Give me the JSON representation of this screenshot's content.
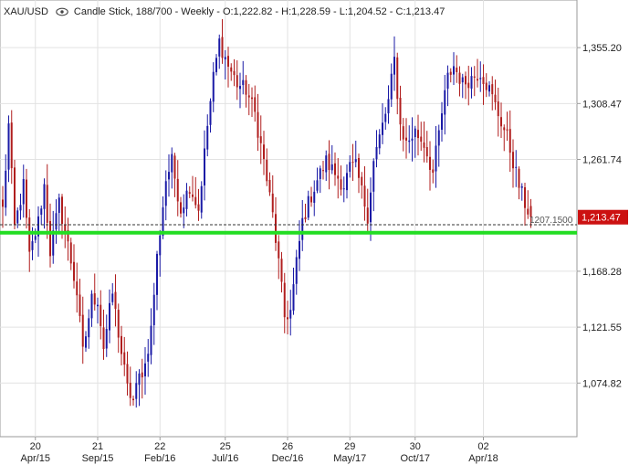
{
  "header": {
    "symbol": "XAU/USD",
    "description": "Candle Stick, 188/700 - Weekly - O:1,222.82 - H:1,228.59 - L:1,204.52 - C:1,213.47"
  },
  "colors": {
    "up": "#1a1aa6",
    "down": "#b01e1e",
    "support_line": "#22dd22",
    "price_badge": "#cc1111",
    "grid": "#e2e2e2",
    "axis": "#9a9a9a"
  },
  "chart_data": {
    "type": "candlestick",
    "title": "XAU/USD",
    "timeframe": "Weekly",
    "last_bar": {
      "open": 1222.82,
      "high": 1228.59,
      "low": 1204.52,
      "close": 1213.47
    },
    "ylim": [
      1030,
      1395
    ],
    "y_ticks": [
      1074.82,
      1121.55,
      1168.28,
      1261.74,
      1308.47,
      1355.2
    ],
    "y_tick_labels": [
      "1,074.82",
      "1,121.55",
      "1,168.28",
      "1,261.74",
      "1,308.47",
      "1,355.20"
    ],
    "x_ticks": [
      {
        "top": "20",
        "bottom": "Apr/15",
        "index": 11
      },
      {
        "top": "21",
        "bottom": "Sep/15",
        "index": 32
      },
      {
        "top": "22",
        "bottom": "Feb/16",
        "index": 53
      },
      {
        "top": "25",
        "bottom": "Jul/16",
        "index": 75
      },
      {
        "top": "26",
        "bottom": "Dec/16",
        "index": 96
      },
      {
        "top": "29",
        "bottom": "May/17",
        "index": 117
      },
      {
        "top": "30",
        "bottom": "Oct/17",
        "index": 139
      },
      {
        "top": "02",
        "bottom": "Apr/18",
        "index": 162
      }
    ],
    "anchors": [
      [
        0,
        1220
      ],
      [
        2,
        1290
      ],
      [
        4,
        1205
      ],
      [
        7,
        1240
      ],
      [
        9,
        1180
      ],
      [
        12,
        1210
      ],
      [
        14,
        1240
      ],
      [
        16,
        1185
      ],
      [
        19,
        1225
      ],
      [
        22,
        1190
      ],
      [
        25,
        1150
      ],
      [
        27,
        1100
      ],
      [
        30,
        1145
      ],
      [
        32,
        1145
      ],
      [
        34,
        1105
      ],
      [
        37,
        1150
      ],
      [
        40,
        1100
      ],
      [
        42,
        1070
      ],
      [
        44,
        1060
      ],
      [
        46,
        1080
      ],
      [
        48,
        1090
      ],
      [
        50,
        1120
      ],
      [
        52,
        1180
      ],
      [
        55,
        1245
      ],
      [
        57,
        1260
      ],
      [
        60,
        1220
      ],
      [
        63,
        1240
      ],
      [
        66,
        1220
      ],
      [
        69,
        1290
      ],
      [
        71,
        1330
      ],
      [
        73,
        1360
      ],
      [
        76,
        1340
      ],
      [
        79,
        1325
      ],
      [
        82,
        1320
      ],
      [
        85,
        1300
      ],
      [
        88,
        1260
      ],
      [
        91,
        1215
      ],
      [
        93,
        1175
      ],
      [
        95,
        1130
      ],
      [
        97,
        1135
      ],
      [
        99,
        1175
      ],
      [
        101,
        1210
      ],
      [
        103,
        1225
      ],
      [
        106,
        1245
      ],
      [
        109,
        1260
      ],
      [
        112,
        1250
      ],
      [
        115,
        1240
      ],
      [
        117,
        1255
      ],
      [
        119,
        1255
      ],
      [
        121,
        1235
      ],
      [
        123,
        1215
      ],
      [
        125,
        1260
      ],
      [
        127,
        1280
      ],
      [
        130,
        1310
      ],
      [
        132,
        1345
      ],
      [
        134,
        1290
      ],
      [
        136,
        1275
      ],
      [
        139,
        1285
      ],
      [
        142,
        1275
      ],
      [
        145,
        1250
      ],
      [
        148,
        1300
      ],
      [
        150,
        1330
      ],
      [
        152,
        1340
      ],
      [
        155,
        1325
      ],
      [
        158,
        1330
      ],
      [
        161,
        1335
      ],
      [
        164,
        1320
      ],
      [
        167,
        1300
      ],
      [
        170,
        1280
      ],
      [
        172,
        1260
      ],
      [
        174,
        1240
      ],
      [
        176,
        1225
      ],
      [
        178,
        1213.47
      ]
    ],
    "reference_lines": [
      {
        "value": 1207.15,
        "label": "1207.1500",
        "style": "dashed"
      },
      {
        "value": 1200.5,
        "style": "solid",
        "color": "#22dd22"
      }
    ],
    "last_price_label": "1,213.47",
    "grid": true
  }
}
